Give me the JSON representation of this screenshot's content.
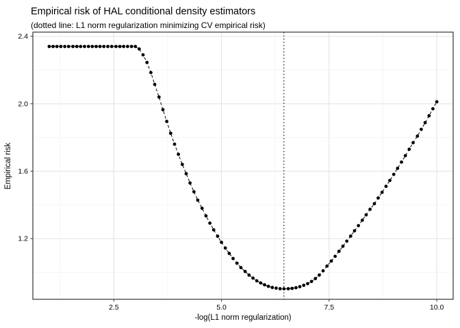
{
  "chart_data": {
    "type": "scatter",
    "title": "Empirical risk of HAL conditional density estimators",
    "subtitle": "(dotted line: L1 norm regularization minimizing CV empirical risk)",
    "xlabel": "-log(L1 norm regularization)",
    "ylabel": "Empirical risk",
    "xlim": [
      0.62,
      10.38
    ],
    "ylim": [
      0.84,
      2.425
    ],
    "x_tick_labels": [
      "2.5",
      "5.0",
      "7.5",
      "10.0"
    ],
    "x_tick_values": [
      2.5,
      5.0,
      7.5,
      10.0
    ],
    "x_minor_values": [
      1.25,
      3.75,
      6.25,
      8.75
    ],
    "y_tick_labels": [
      "1.2",
      "1.6",
      "2.0",
      "2.4"
    ],
    "y_tick_values": [
      1.2,
      1.6,
      2.0,
      2.4
    ],
    "y_minor_values": [
      1.0,
      1.4,
      1.8,
      2.2
    ],
    "vline_x": 6.45,
    "vline_style": "dotted",
    "line_style": "dashed",
    "legend": "none",
    "grid": true,
    "colors": {
      "point": "#000000",
      "line": "#000000",
      "vline": "#000000",
      "grid_major": "#e6e6e6",
      "grid_minor": "#f3f3f3",
      "panel_border": "#333333",
      "axis_text": "#4d4d4d",
      "tick_mark": "#333333",
      "panel_bg": "#ffffff"
    },
    "points": [
      [
        1.0,
        2.34
      ],
      [
        1.09,
        2.34
      ],
      [
        1.18,
        2.34
      ],
      [
        1.27,
        2.34
      ],
      [
        1.36,
        2.34
      ],
      [
        1.45,
        2.34
      ],
      [
        1.55,
        2.34
      ],
      [
        1.64,
        2.34
      ],
      [
        1.73,
        2.34
      ],
      [
        1.82,
        2.34
      ],
      [
        1.91,
        2.34
      ],
      [
        2.0,
        2.34
      ],
      [
        2.09,
        2.34
      ],
      [
        2.18,
        2.34
      ],
      [
        2.27,
        2.34
      ],
      [
        2.36,
        2.34
      ],
      [
        2.45,
        2.34
      ],
      [
        2.55,
        2.34
      ],
      [
        2.64,
        2.34
      ],
      [
        2.73,
        2.34
      ],
      [
        2.82,
        2.34
      ],
      [
        2.91,
        2.34
      ],
      [
        3.0,
        2.34
      ],
      [
        3.09,
        2.325
      ],
      [
        3.18,
        2.29
      ],
      [
        3.27,
        2.245
      ],
      [
        3.36,
        2.185
      ],
      [
        3.45,
        2.115
      ],
      [
        3.55,
        2.04
      ],
      [
        3.64,
        1.965
      ],
      [
        3.73,
        1.895
      ],
      [
        3.82,
        1.825
      ],
      [
        3.91,
        1.76
      ],
      [
        4.0,
        1.7
      ],
      [
        4.09,
        1.64
      ],
      [
        4.18,
        1.585
      ],
      [
        4.27,
        1.53
      ],
      [
        4.36,
        1.478
      ],
      [
        4.45,
        1.428
      ],
      [
        4.55,
        1.38
      ],
      [
        4.64,
        1.335
      ],
      [
        4.73,
        1.292
      ],
      [
        4.82,
        1.252
      ],
      [
        4.91,
        1.214
      ],
      [
        5.0,
        1.178
      ],
      [
        5.09,
        1.144
      ],
      [
        5.18,
        1.112
      ],
      [
        5.27,
        1.082
      ],
      [
        5.36,
        1.054
      ],
      [
        5.45,
        1.028
      ],
      [
        5.55,
        1.005
      ],
      [
        5.64,
        0.984
      ],
      [
        5.73,
        0.966
      ],
      [
        5.82,
        0.95
      ],
      [
        5.91,
        0.937
      ],
      [
        6.0,
        0.926
      ],
      [
        6.09,
        0.917
      ],
      [
        6.18,
        0.91
      ],
      [
        6.27,
        0.906
      ],
      [
        6.36,
        0.903
      ],
      [
        6.45,
        0.902
      ],
      [
        6.55,
        0.903
      ],
      [
        6.64,
        0.905
      ],
      [
        6.73,
        0.909
      ],
      [
        6.82,
        0.915
      ],
      [
        6.91,
        0.923
      ],
      [
        7.0,
        0.933
      ],
      [
        7.09,
        0.946
      ],
      [
        7.18,
        0.963
      ],
      [
        7.27,
        0.984
      ],
      [
        7.36,
        1.009
      ],
      [
        7.45,
        1.037
      ],
      [
        7.55,
        1.067
      ],
      [
        7.64,
        1.095
      ],
      [
        7.73,
        1.125
      ],
      [
        7.82,
        1.155
      ],
      [
        7.91,
        1.185
      ],
      [
        8.0,
        1.215
      ],
      [
        8.09,
        1.246
      ],
      [
        8.18,
        1.277
      ],
      [
        8.27,
        1.309
      ],
      [
        8.36,
        1.341
      ],
      [
        8.45,
        1.374
      ],
      [
        8.55,
        1.407
      ],
      [
        8.64,
        1.441
      ],
      [
        8.73,
        1.475
      ],
      [
        8.82,
        1.51
      ],
      [
        8.91,
        1.545
      ],
      [
        9.0,
        1.581
      ],
      [
        9.09,
        1.617
      ],
      [
        9.18,
        1.654
      ],
      [
        9.27,
        1.692
      ],
      [
        9.36,
        1.73
      ],
      [
        9.45,
        1.769
      ],
      [
        9.55,
        1.808
      ],
      [
        9.64,
        1.848
      ],
      [
        9.73,
        1.888
      ],
      [
        9.82,
        1.929
      ],
      [
        9.91,
        1.97
      ],
      [
        10.0,
        2.012
      ]
    ]
  }
}
